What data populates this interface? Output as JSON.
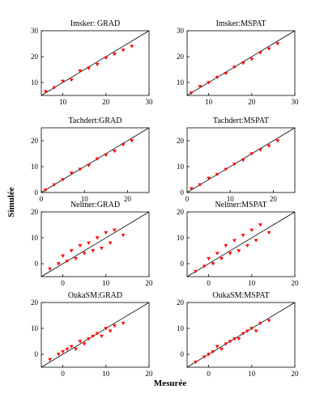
{
  "figure": {
    "ylabel": "Simulée",
    "xlabel": "Mesurée"
  },
  "colors": {
    "points": "#ff0000",
    "axes": "#000000",
    "reference_line": "#000000"
  },
  "chart_data": [
    {
      "type": "scatter",
      "title": "Imsker: GRAD",
      "marker": "down-triangle",
      "xlim": [
        5,
        30
      ],
      "ylim": [
        5,
        30
      ],
      "xticks": [
        10,
        20,
        30
      ],
      "yticks": [
        10,
        20,
        30
      ],
      "reference_line": "1:1",
      "points": [
        [
          6,
          6.5
        ],
        [
          8,
          8
        ],
        [
          10,
          10.5
        ],
        [
          12,
          11
        ],
        [
          14,
          14.5
        ],
        [
          16,
          15.5
        ],
        [
          18,
          17
        ],
        [
          20,
          19.5
        ],
        [
          22,
          21
        ],
        [
          24,
          22.5
        ],
        [
          26,
          24
        ]
      ]
    },
    {
      "type": "scatter",
      "title": "Imsker:MSPAT",
      "marker": "down-triangle",
      "xlim": [
        5,
        30
      ],
      "ylim": [
        5,
        30
      ],
      "xticks": [
        10,
        20,
        30
      ],
      "yticks": [
        10,
        20,
        30
      ],
      "reference_line": "1:1",
      "points": [
        [
          6,
          6
        ],
        [
          8,
          8.5
        ],
        [
          10,
          10
        ],
        [
          12,
          12
        ],
        [
          14,
          13.5
        ],
        [
          16,
          16
        ],
        [
          18,
          17.5
        ],
        [
          20,
          19
        ],
        [
          22,
          21.5
        ],
        [
          24,
          23
        ],
        [
          26,
          25
        ]
      ]
    },
    {
      "type": "scatter",
      "title": "Tachdert:GRAD",
      "marker": "down-triangle",
      "xlim": [
        0,
        25
      ],
      "ylim": [
        0,
        25
      ],
      "xticks": [
        0,
        10,
        20
      ],
      "yticks": [
        0,
        10,
        20
      ],
      "reference_line": "1:1",
      "points": [
        [
          1,
          1
        ],
        [
          3,
          3
        ],
        [
          5,
          5
        ],
        [
          7,
          7.5
        ],
        [
          9,
          9
        ],
        [
          11,
          10.5
        ],
        [
          13,
          13
        ],
        [
          15,
          14.5
        ],
        [
          17,
          16
        ],
        [
          19,
          18.5
        ],
        [
          21,
          20
        ]
      ]
    },
    {
      "type": "scatter",
      "title": "Tachdert:MSPAT",
      "marker": "down-triangle",
      "xlim": [
        0,
        25
      ],
      "ylim": [
        0,
        25
      ],
      "xticks": [
        0,
        10,
        20
      ],
      "yticks": [
        0,
        10,
        20
      ],
      "reference_line": "1:1",
      "points": [
        [
          1,
          1.5
        ],
        [
          3,
          3
        ],
        [
          5,
          5.5
        ],
        [
          7,
          7
        ],
        [
          9,
          9
        ],
        [
          11,
          11
        ],
        [
          13,
          12.5
        ],
        [
          15,
          15
        ],
        [
          17,
          16.5
        ],
        [
          19,
          18
        ],
        [
          21,
          20
        ]
      ]
    },
    {
      "type": "scatter",
      "title": "Neltner:GRAD",
      "marker": "down-triangle",
      "xlim": [
        -5,
        20
      ],
      "ylim": [
        -5,
        20
      ],
      "xticks": [
        0,
        10,
        20
      ],
      "yticks": [
        0,
        10,
        20
      ],
      "reference_line": "1:1",
      "points": [
        [
          -3,
          -2
        ],
        [
          -1,
          0
        ],
        [
          0,
          3
        ],
        [
          1,
          1
        ],
        [
          2,
          5
        ],
        [
          3,
          2
        ],
        [
          4,
          7
        ],
        [
          5,
          4
        ],
        [
          6,
          8
        ],
        [
          7,
          5
        ],
        [
          8,
          10
        ],
        [
          9,
          6
        ],
        [
          10,
          12
        ],
        [
          11,
          8
        ],
        [
          12,
          13
        ],
        [
          14,
          11
        ]
      ]
    },
    {
      "type": "scatter",
      "title": "Neltner:MSPAT",
      "marker": "down-triangle",
      "xlim": [
        -5,
        20
      ],
      "ylim": [
        -5,
        20
      ],
      "xticks": [
        0,
        10,
        20
      ],
      "yticks": [
        0,
        10,
        20
      ],
      "reference_line": "1:1",
      "points": [
        [
          -3,
          -3
        ],
        [
          -1,
          -1
        ],
        [
          0,
          2
        ],
        [
          1,
          0
        ],
        [
          2,
          4
        ],
        [
          3,
          2
        ],
        [
          4,
          7
        ],
        [
          5,
          4
        ],
        [
          6,
          9
        ],
        [
          7,
          5
        ],
        [
          8,
          11
        ],
        [
          9,
          7
        ],
        [
          10,
          13
        ],
        [
          11,
          9
        ],
        [
          12,
          15
        ],
        [
          14,
          12
        ]
      ]
    },
    {
      "type": "scatter",
      "title": "OukaSM:GRAD",
      "marker": "down-triangle",
      "xlim": [
        -5,
        20
      ],
      "ylim": [
        -5,
        20
      ],
      "xticks": [
        0,
        10,
        20
      ],
      "yticks": [
        0,
        10,
        20
      ],
      "reference_line": "1:1",
      "points": [
        [
          -3,
          -2
        ],
        [
          -1,
          0
        ],
        [
          0,
          1
        ],
        [
          1,
          2
        ],
        [
          2,
          3
        ],
        [
          3,
          2
        ],
        [
          4,
          5
        ],
        [
          5,
          4
        ],
        [
          6,
          6
        ],
        [
          7,
          7
        ],
        [
          8,
          8
        ],
        [
          9,
          7
        ],
        [
          10,
          10
        ],
        [
          11,
          9
        ],
        [
          12,
          11
        ],
        [
          14,
          12
        ]
      ]
    },
    {
      "type": "scatter",
      "title": "OukaSM:MSPAT",
      "marker": "down-triangle",
      "xlim": [
        -5,
        20
      ],
      "ylim": [
        -5,
        20
      ],
      "xticks": [
        0,
        10,
        20
      ],
      "yticks": [
        0,
        10,
        20
      ],
      "reference_line": "1:1",
      "points": [
        [
          -3,
          -3
        ],
        [
          -1,
          -1
        ],
        [
          0,
          0
        ],
        [
          1,
          1
        ],
        [
          2,
          3
        ],
        [
          3,
          2
        ],
        [
          4,
          4
        ],
        [
          5,
          5
        ],
        [
          6,
          6
        ],
        [
          7,
          6
        ],
        [
          8,
          8
        ],
        [
          9,
          9
        ],
        [
          10,
          10
        ],
        [
          11,
          9
        ],
        [
          12,
          12
        ],
        [
          14,
          13
        ]
      ]
    }
  ]
}
